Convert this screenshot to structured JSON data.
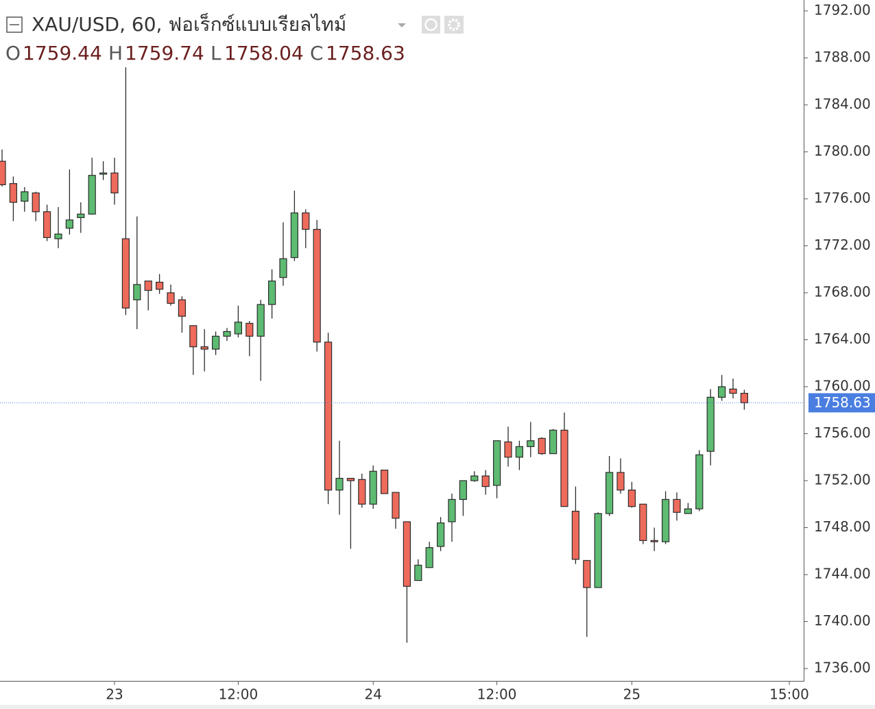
{
  "chart_data": {
    "type": "candlestick",
    "title": "XAU/USD, 60, ฟอเร็กซ์แบบเรียลไทม์",
    "ohlc_labels": [
      "O",
      "H",
      "L",
      "C"
    ],
    "categories": [
      null,
      null,
      null,
      null,
      null,
      null,
      null,
      null,
      null,
      null,
      "23",
      null,
      null,
      null,
      null,
      null,
      null,
      null,
      null,
      null,
      null,
      "12:00",
      null,
      null,
      null,
      null,
      null,
      null,
      null,
      null,
      null,
      null,
      null,
      "24",
      null,
      null,
      null,
      null,
      null,
      null,
      null,
      null,
      null,
      null,
      "12:00",
      null,
      null,
      null,
      null,
      null,
      null,
      null,
      null,
      null,
      null,
      null,
      "25",
      null,
      null,
      null,
      null,
      null,
      null,
      null,
      null,
      null,
      null,
      null,
      null,
      null,
      "15:00"
    ],
    "open": [
      1779.2,
      1777.3,
      1775.8,
      1776.5,
      1774.9,
      1772.6,
      1773.5,
      1774.4,
      1774.7,
      1778.1,
      1778.2,
      1772.6,
      1767.4,
      1769.0,
      1768.9,
      1768.0,
      1767.4,
      1765.2,
      1763.4,
      1763.2,
      1764.3,
      1764.5,
      1765.4,
      1764.3,
      1767.0,
      1769.3,
      1771.0,
      1774.8,
      1773.4,
      1763.8,
      1751.2,
      1752.2,
      1752.1,
      1750.0,
      1752.9,
      1751.0,
      1748.5,
      1743.5,
      1744.6,
      1746.4,
      1748.5,
      1750.4,
      1752.0,
      1752.4,
      1751.6,
      1755.3,
      1754.0,
      1754.9,
      1755.6,
      1754.3,
      1756.3,
      1749.4,
      1745.2,
      1742.9,
      1749.2,
      1752.7,
      1751.2,
      1750.0,
      1746.9,
      1746.8,
      1750.4,
      1749.2,
      1749.6,
      1754.5,
      1759.1,
      1759.8,
      1759.44,
      null,
      null,
      null,
      null
    ],
    "high": [
      1780.2,
      1777.9,
      1777.0,
      1776.6,
      1775.5,
      1775.3,
      1778.5,
      1775.7,
      1779.5,
      1779.2,
      1779.5,
      1787.2,
      1774.5,
      1769.0,
      1769.6,
      1768.7,
      1767.7,
      1765.2,
      1764.9,
      1764.7,
      1765.0,
      1766.9,
      1765.6,
      1767.4,
      1770.0,
      1774.0,
      1776.7,
      1775.1,
      1774.2,
      1764.6,
      1755.4,
      1752.2,
      1752.6,
      1753.3,
      1752.9,
      1751.0,
      1748.5,
      1745.3,
      1746.8,
      1748.9,
      1750.9,
      1752.0,
      1752.8,
      1752.9,
      1755.4,
      1756.6,
      1755.4,
      1757.0,
      1755.7,
      1756.4,
      1757.8,
      1751.5,
      1745.2,
      1749.3,
      1754.1,
      1753.9,
      1751.9,
      1750.0,
      1748.0,
      1751.1,
      1751.0,
      1750.1,
      1754.6,
      1759.8,
      1761.0,
      1760.7,
      1759.74,
      null,
      null,
      null,
      null
    ],
    "low": [
      1777.05,
      1774.1,
      1774.9,
      1774.1,
      1772.4,
      1771.8,
      1772.96,
      1773.1,
      1774.65,
      1777.6,
      1775.5,
      1766.1,
      1764.9,
      1766.5,
      1767.9,
      1766.9,
      1764.6,
      1761.0,
      1761.3,
      1762.7,
      1763.9,
      1764.2,
      1762.6,
      1760.5,
      1765.8,
      1768.6,
      1770.7,
      1771.8,
      1763.0,
      1750.0,
      1749.1,
      1746.2,
      1749.7,
      1749.6,
      1750.9,
      1747.9,
      1738.2,
      1743.5,
      1744.6,
      1746.0,
      1746.8,
      1749.0,
      1751.9,
      1750.8,
      1750.5,
      1753.2,
      1752.9,
      1754.0,
      1754.2,
      1754.3,
      1749.8,
      1744.9,
      1738.7,
      1742.9,
      1749.0,
      1750.9,
      1749.7,
      1746.6,
      1746.0,
      1746.6,
      1748.6,
      1749.2,
      1749.4,
      1753.3,
      1758.8,
      1759.0,
      1758.04,
      null,
      null,
      null,
      null
    ],
    "close": [
      1777.2,
      1775.7,
      1776.6,
      1774.9,
      1772.7,
      1773.0,
      1774.2,
      1774.7,
      1778.0,
      1778.2,
      1776.5,
      1766.7,
      1768.7,
      1768.2,
      1768.3,
      1767.1,
      1766.0,
      1763.4,
      1763.2,
      1764.3,
      1764.7,
      1765.5,
      1764.3,
      1767.0,
      1769.0,
      1770.9,
      1774.8,
      1773.4,
      1763.8,
      1751.2,
      1752.2,
      1752.0,
      1750.0,
      1752.8,
      1750.9,
      1748.8,
      1743.0,
      1744.8,
      1746.3,
      1748.4,
      1750.4,
      1752.0,
      1752.4,
      1751.5,
      1755.4,
      1754.0,
      1754.9,
      1755.4,
      1754.3,
      1756.3,
      1749.8,
      1745.3,
      1742.9,
      1749.2,
      1752.7,
      1751.2,
      1749.8,
      1746.9,
      1746.8,
      1750.4,
      1749.3,
      1749.6,
      1754.2,
      1759.1,
      1760.0,
      1759.44,
      1758.63,
      null,
      null,
      null,
      null
    ],
    "up_color": "#5dbb72",
    "down_color": "#ee6b5c",
    "last_price_color": "#4a7ee0",
    "ylim": [
      1734.95,
      1792.93
    ],
    "yticks": [
      {
        "value": 1736,
        "label": "1736.00"
      },
      {
        "value": 1740,
        "label": "1740.00"
      },
      {
        "value": 1744,
        "label": "1744.00"
      },
      {
        "value": 1748,
        "label": "1748.00"
      },
      {
        "value": 1752,
        "label": "1752.00"
      },
      {
        "value": 1756,
        "label": "1756.00"
      },
      {
        "value": 1760,
        "label": "1760.00"
      },
      {
        "value": 1764,
        "label": "1764.00"
      },
      {
        "value": 1768,
        "label": "1768.00"
      },
      {
        "value": 1772,
        "label": "1772.00"
      },
      {
        "value": 1776,
        "label": "1776.00"
      },
      {
        "value": 1780,
        "label": "1780.00"
      },
      {
        "value": 1784,
        "label": "1784.00"
      },
      {
        "value": 1788,
        "label": "1788.00"
      },
      {
        "value": 1792,
        "label": "1792.00"
      }
    ],
    "grid": false
  }
}
